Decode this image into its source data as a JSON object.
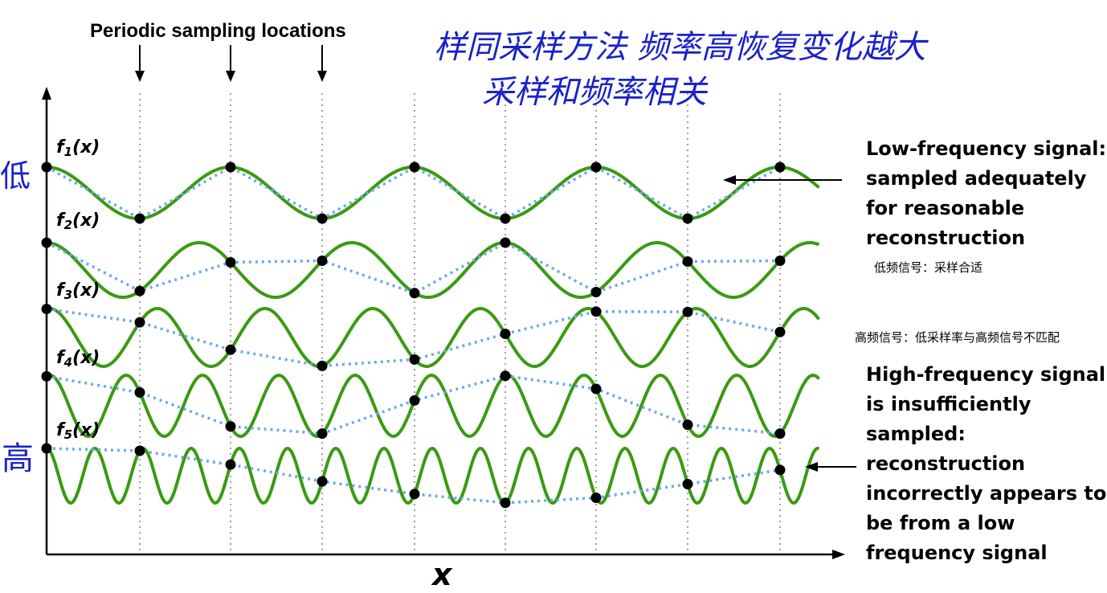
{
  "header": {
    "title": "Periodic sampling locations"
  },
  "axis": {
    "x_label": "x"
  },
  "functions": [
    {
      "label": "f1(x)",
      "base": "f",
      "sub": "1",
      "arg": "(x)",
      "cycles_per_interval": 0.5
    },
    {
      "label": "f2(x)",
      "base": "f",
      "sub": "2",
      "arg": "(x)",
      "cycles_per_interval": 0.6
    },
    {
      "label": "f3(x)",
      "base": "f",
      "sub": "3",
      "arg": "(x)",
      "cycles_per_interval": 0.85
    },
    {
      "label": "f4(x)",
      "base": "f",
      "sub": "4",
      "arg": "(x)",
      "cycles_per_interval": 1.2
    },
    {
      "label": "f5(x)",
      "base": "f",
      "sub": "5",
      "arg": "(x)",
      "cycles_per_interval": 1.9
    }
  ],
  "sample_count": 9,
  "handwriting": {
    "line1": "样同采样方法  频率高恢复变化越大",
    "line2": "采样和频率相关",
    "low_mark": "低",
    "high_mark": "高"
  },
  "low_panel": {
    "lines": [
      "Low-frequency signal:",
      "sampled adequately",
      "for reasonable",
      "reconstruction"
    ],
    "note": "低频信号：采样合适"
  },
  "high_note": "高频信号：低采样率与高频信号不匹配",
  "high_panel": {
    "lines": [
      "High-frequency signal",
      "is insufficiently",
      "sampled:",
      "reconstruction",
      "incorrectly appears to",
      "be from a low",
      "frequency signal"
    ]
  },
  "colors": {
    "signal": "#3a9a12",
    "sample_line": "#6aa8f0",
    "sample_dot": "#000000",
    "grid": "#a0a0a0",
    "handwriting": "#1a22c8"
  }
}
